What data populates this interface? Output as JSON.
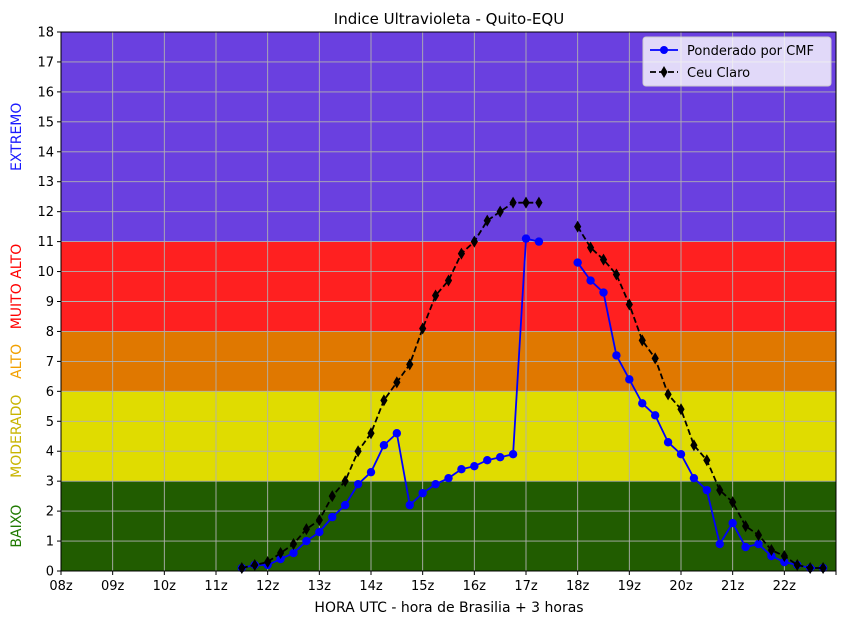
{
  "chart_data": {
    "type": "line",
    "title": "Indice Ultravioleta - Quito-EQU",
    "xlabel": "HORA UTC - hora de Brasilia + 3 horas",
    "ylabel": "",
    "xlim": [
      8,
      23
    ],
    "ylim": [
      0,
      18
    ],
    "grid": true,
    "legend_position": "top-right",
    "x_ticks": [
      "08z",
      "09z",
      "10z",
      "11z",
      "12z",
      "13z",
      "14z",
      "15z",
      "16z",
      "17z",
      "18z",
      "19z",
      "20z",
      "21z",
      "22z",
      ""
    ],
    "y_ticks": [
      "0",
      "1",
      "2",
      "3",
      "4",
      "5",
      "6",
      "7",
      "8",
      "9",
      "10",
      "11",
      "12",
      "13",
      "14",
      "15",
      "16",
      "17",
      "18"
    ],
    "bands": [
      {
        "label": "BAIXO",
        "from": 0,
        "to": 3,
        "color": "#215c00",
        "label_color": "#1f7a00"
      },
      {
        "label": "MODERADO",
        "from": 3,
        "to": 6,
        "color": "#e0dc00",
        "label_color": "#c8b400"
      },
      {
        "label": "ALTO",
        "from": 6,
        "to": 8,
        "color": "#e07800",
        "label_color": "#f2a000"
      },
      {
        "label": "MUITO ALTO",
        "from": 8,
        "to": 11,
        "color": "#ff2020",
        "label_color": "#ff0000"
      },
      {
        "label": "EXTREMO",
        "from": 11,
        "to": 18,
        "color": "#6a40e0",
        "label_color": "#1a1aff"
      }
    ],
    "series": [
      {
        "name": "Ponderado por CMF",
        "color": "#0000ff",
        "marker": "circle",
        "line": "solid",
        "segments": [
          [
            [
              11.5,
              0.1
            ],
            [
              11.75,
              0.2
            ],
            [
              12.0,
              0.2
            ],
            [
              12.25,
              0.4
            ],
            [
              12.5,
              0.6
            ],
            [
              12.75,
              1.0
            ],
            [
              13.0,
              1.3
            ],
            [
              13.25,
              1.8
            ],
            [
              13.5,
              2.2
            ],
            [
              13.75,
              2.9
            ],
            [
              14.0,
              3.3
            ],
            [
              14.25,
              4.2
            ],
            [
              14.5,
              4.6
            ],
            [
              14.75,
              2.2
            ],
            [
              15.0,
              2.6
            ],
            [
              15.25,
              2.9
            ],
            [
              15.5,
              3.1
            ],
            [
              15.75,
              3.4
            ],
            [
              16.0,
              3.5
            ],
            [
              16.25,
              3.7
            ],
            [
              16.5,
              3.8
            ],
            [
              16.75,
              3.9
            ],
            [
              17.0,
              11.1
            ],
            [
              17.25,
              11.0
            ]
          ],
          [
            [
              18.0,
              10.3
            ],
            [
              18.25,
              9.7
            ],
            [
              18.5,
              9.3
            ],
            [
              18.75,
              7.2
            ],
            [
              19.0,
              6.4
            ],
            [
              19.25,
              5.6
            ],
            [
              19.5,
              5.2
            ],
            [
              19.75,
              4.3
            ],
            [
              20.0,
              3.9
            ],
            [
              20.25,
              3.1
            ],
            [
              20.5,
              2.7
            ],
            [
              20.75,
              0.9
            ],
            [
              21.0,
              1.6
            ],
            [
              21.25,
              0.8
            ],
            [
              21.5,
              0.9
            ],
            [
              21.75,
              0.5
            ],
            [
              22.0,
              0.3
            ],
            [
              22.25,
              0.2
            ],
            [
              22.5,
              0.1
            ],
            [
              22.75,
              0.1
            ]
          ]
        ]
      },
      {
        "name": "Ceu Claro",
        "color": "#000000",
        "marker": "diamond",
        "line": "dashed",
        "segments": [
          [
            [
              11.5,
              0.1
            ],
            [
              11.75,
              0.2
            ],
            [
              12.0,
              0.3
            ],
            [
              12.25,
              0.6
            ],
            [
              12.5,
              0.9
            ],
            [
              12.75,
              1.4
            ],
            [
              13.0,
              1.7
            ],
            [
              13.25,
              2.5
            ],
            [
              13.5,
              3.0
            ],
            [
              13.75,
              4.0
            ],
            [
              14.0,
              4.6
            ],
            [
              14.25,
              5.7
            ],
            [
              14.5,
              6.3
            ],
            [
              14.75,
              6.9
            ],
            [
              15.0,
              8.1
            ],
            [
              15.25,
              9.2
            ],
            [
              15.5,
              9.7
            ],
            [
              15.75,
              10.6
            ],
            [
              16.0,
              11.0
            ],
            [
              16.25,
              11.7
            ],
            [
              16.5,
              12.0
            ],
            [
              16.75,
              12.3
            ],
            [
              17.0,
              12.3
            ],
            [
              17.25,
              12.3
            ]
          ],
          [
            [
              18.0,
              11.5
            ],
            [
              18.25,
              10.8
            ],
            [
              18.5,
              10.4
            ],
            [
              18.75,
              9.9
            ],
            [
              19.0,
              8.9
            ],
            [
              19.25,
              7.7
            ],
            [
              19.5,
              7.1
            ],
            [
              19.75,
              5.9
            ],
            [
              20.0,
              5.4
            ],
            [
              20.25,
              4.2
            ],
            [
              20.5,
              3.7
            ],
            [
              20.75,
              2.7
            ],
            [
              21.0,
              2.3
            ],
            [
              21.25,
              1.5
            ],
            [
              21.5,
              1.2
            ],
            [
              21.75,
              0.7
            ],
            [
              22.0,
              0.5
            ],
            [
              22.25,
              0.2
            ],
            [
              22.5,
              0.1
            ],
            [
              22.75,
              0.1
            ]
          ]
        ]
      }
    ]
  }
}
